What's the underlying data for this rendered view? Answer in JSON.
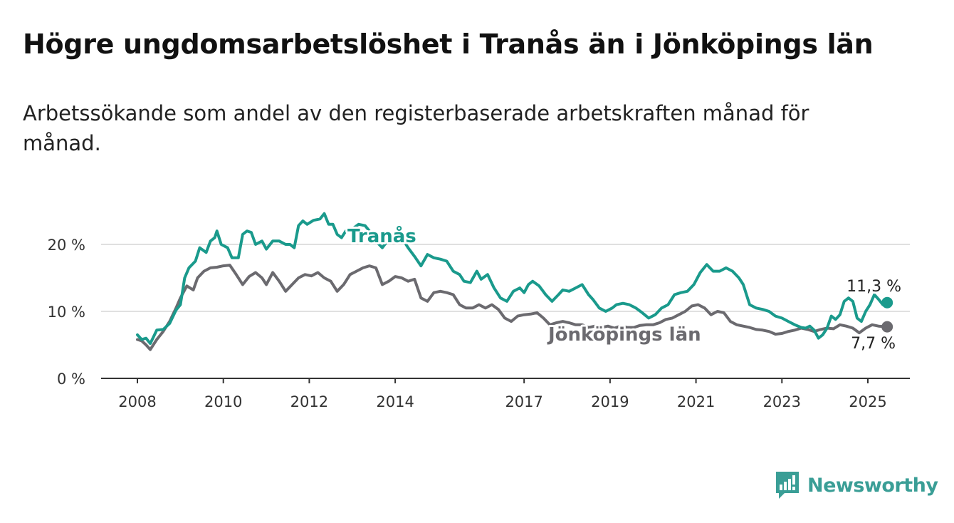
{
  "title": "Högre ungdomsarbetslöshet i Tranås än i Jönköpings län",
  "subtitle": "Arbetssökande som andel av den registerbaserade arbetskraften månad för månad.",
  "brand": {
    "name": "Newsworthy",
    "icon": "newsworthy-logo-icon",
    "color": "#3a9e96"
  },
  "chart_data": {
    "type": "line",
    "title": "Högre ungdomsarbetslöshet i Tranås än i Jönköpings län",
    "xlabel": "",
    "ylabel": "",
    "xlim": [
      2008,
      2025.25
    ],
    "ylim": [
      0,
      20
    ],
    "grid": true,
    "y_ticks": [
      0,
      10,
      20
    ],
    "y_tick_labels": [
      "0 %",
      "10 %",
      "20 %"
    ],
    "x_ticks": [
      2008,
      2010,
      2012,
      2014,
      2017,
      2019,
      2021,
      2023,
      2025
    ],
    "x_tick_labels": [
      "2008",
      "2010",
      "2012",
      "2014",
      "2017",
      "2019",
      "2021",
      "2023",
      "2025"
    ],
    "series": [
      {
        "name": "Tranås",
        "color": "#1a9a8c",
        "end_label": "11,3 %",
        "points": [
          [
            2008,
            6.5
          ],
          [
            2008.1,
            5.8
          ],
          [
            2008.2,
            6.0
          ],
          [
            2008.3,
            5.2
          ],
          [
            2008.45,
            7.2
          ],
          [
            2008.6,
            7.3
          ],
          [
            2008.75,
            8.2
          ],
          [
            2008.9,
            10.2
          ],
          [
            2009.0,
            11.0
          ],
          [
            2009.1,
            15.0
          ],
          [
            2009.2,
            16.5
          ],
          [
            2009.35,
            17.5
          ],
          [
            2009.45,
            19.5
          ],
          [
            2009.6,
            18.8
          ],
          [
            2009.7,
            20.5
          ],
          [
            2009.8,
            21.0
          ],
          [
            2009.85,
            22.0
          ],
          [
            2009.95,
            20.0
          ],
          [
            2010.1,
            19.5
          ],
          [
            2010.2,
            18.0
          ],
          [
            2010.35,
            18.0
          ],
          [
            2010.45,
            21.5
          ],
          [
            2010.55,
            22.0
          ],
          [
            2010.65,
            21.8
          ],
          [
            2010.75,
            20.0
          ],
          [
            2010.9,
            20.5
          ],
          [
            2011.0,
            19.3
          ],
          [
            2011.15,
            20.5
          ],
          [
            2011.3,
            20.5
          ],
          [
            2011.45,
            20.0
          ],
          [
            2011.55,
            20.0
          ],
          [
            2011.65,
            19.5
          ],
          [
            2011.75,
            22.8
          ],
          [
            2011.85,
            23.5
          ],
          [
            2011.95,
            23.0
          ],
          [
            2012.1,
            23.6
          ],
          [
            2012.25,
            23.8
          ],
          [
            2012.35,
            24.6
          ],
          [
            2012.45,
            23.0
          ],
          [
            2012.55,
            23.0
          ],
          [
            2012.65,
            21.5
          ],
          [
            2012.75,
            21.0
          ],
          [
            2012.85,
            22.0
          ],
          [
            2013.0,
            22.3
          ],
          [
            2013.15,
            23.0
          ],
          [
            2013.3,
            22.8
          ],
          [
            2013.4,
            22.0
          ],
          [
            2013.55,
            20.5
          ],
          [
            2013.7,
            19.5
          ],
          [
            2013.85,
            20.8
          ],
          [
            2014.0,
            20.5
          ],
          [
            2014.15,
            21.0
          ],
          [
            2014.3,
            19.5
          ],
          [
            2014.45,
            18.2
          ],
          [
            2014.6,
            16.8
          ],
          [
            2014.75,
            18.5
          ],
          [
            2014.9,
            18.0
          ],
          [
            2015.05,
            17.8
          ],
          [
            2015.2,
            17.5
          ],
          [
            2015.35,
            16.0
          ],
          [
            2015.5,
            15.5
          ],
          [
            2015.6,
            14.5
          ],
          [
            2015.75,
            14.3
          ],
          [
            2015.9,
            16.0
          ],
          [
            2016.0,
            14.8
          ],
          [
            2016.15,
            15.5
          ],
          [
            2016.3,
            13.5
          ],
          [
            2016.45,
            12.0
          ],
          [
            2016.6,
            11.5
          ],
          [
            2016.75,
            13.0
          ],
          [
            2016.9,
            13.5
          ],
          [
            2017.0,
            12.8
          ],
          [
            2017.1,
            14.0
          ],
          [
            2017.2,
            14.5
          ],
          [
            2017.35,
            13.8
          ],
          [
            2017.5,
            12.5
          ],
          [
            2017.65,
            11.5
          ],
          [
            2017.8,
            12.5
          ],
          [
            2017.9,
            13.2
          ],
          [
            2018.05,
            13.0
          ],
          [
            2018.2,
            13.5
          ],
          [
            2018.35,
            14.0
          ],
          [
            2018.5,
            12.5
          ],
          [
            2018.6,
            11.8
          ],
          [
            2018.75,
            10.5
          ],
          [
            2018.9,
            10.0
          ],
          [
            2019.05,
            10.5
          ],
          [
            2019.15,
            11.0
          ],
          [
            2019.3,
            11.2
          ],
          [
            2019.45,
            11.0
          ],
          [
            2019.6,
            10.5
          ],
          [
            2019.75,
            9.8
          ],
          [
            2019.9,
            9.0
          ],
          [
            2020.05,
            9.5
          ],
          [
            2020.2,
            10.5
          ],
          [
            2020.35,
            11.0
          ],
          [
            2020.5,
            12.5
          ],
          [
            2020.65,
            12.8
          ],
          [
            2020.8,
            13.0
          ],
          [
            2020.95,
            14.0
          ],
          [
            2021.1,
            15.8
          ],
          [
            2021.25,
            17.0
          ],
          [
            2021.4,
            16.0
          ],
          [
            2021.55,
            16.0
          ],
          [
            2021.7,
            16.5
          ],
          [
            2021.85,
            16.0
          ],
          [
            2022.0,
            15.0
          ],
          [
            2022.1,
            14.0
          ],
          [
            2022.25,
            11.0
          ],
          [
            2022.4,
            10.5
          ],
          [
            2022.55,
            10.3
          ],
          [
            2022.7,
            10.0
          ],
          [
            2022.85,
            9.3
          ],
          [
            2023.0,
            9.0
          ],
          [
            2023.15,
            8.5
          ],
          [
            2023.3,
            8.0
          ],
          [
            2023.45,
            7.6
          ],
          [
            2023.55,
            7.5
          ],
          [
            2023.65,
            7.8
          ],
          [
            2023.75,
            7.2
          ],
          [
            2023.85,
            6.0
          ],
          [
            2023.95,
            6.5
          ],
          [
            2024.05,
            7.5
          ],
          [
            2024.15,
            9.3
          ],
          [
            2024.25,
            8.8
          ],
          [
            2024.35,
            9.5
          ],
          [
            2024.45,
            11.5
          ],
          [
            2024.55,
            12.0
          ],
          [
            2024.65,
            11.5
          ],
          [
            2024.75,
            9.0
          ],
          [
            2024.85,
            8.5
          ],
          [
            2024.95,
            10.0
          ],
          [
            2025.05,
            11.0
          ],
          [
            2025.15,
            12.5
          ],
          [
            2025.25,
            11.8
          ],
          [
            2025.35,
            11.0
          ],
          [
            2025.45,
            11.3
          ]
        ]
      },
      {
        "name": "Jönköpings län",
        "color": "#6b6a6f",
        "end_label": "7,7 %",
        "points": [
          [
            2008,
            5.8
          ],
          [
            2008.1,
            5.6
          ],
          [
            2008.2,
            5.0
          ],
          [
            2008.3,
            4.3
          ],
          [
            2008.45,
            5.8
          ],
          [
            2008.6,
            7.0
          ],
          [
            2008.75,
            8.5
          ],
          [
            2008.9,
            10.5
          ],
          [
            2009.0,
            12.0
          ],
          [
            2009.15,
            13.8
          ],
          [
            2009.3,
            13.2
          ],
          [
            2009.4,
            15.0
          ],
          [
            2009.55,
            16.0
          ],
          [
            2009.7,
            16.5
          ],
          [
            2009.85,
            16.6
          ],
          [
            2010.0,
            16.8
          ],
          [
            2010.15,
            16.9
          ],
          [
            2010.3,
            15.5
          ],
          [
            2010.45,
            14.0
          ],
          [
            2010.6,
            15.2
          ],
          [
            2010.75,
            15.8
          ],
          [
            2010.9,
            15.0
          ],
          [
            2011.0,
            14.0
          ],
          [
            2011.15,
            15.8
          ],
          [
            2011.3,
            14.5
          ],
          [
            2011.45,
            13.0
          ],
          [
            2011.6,
            14.0
          ],
          [
            2011.75,
            15.0
          ],
          [
            2011.9,
            15.5
          ],
          [
            2012.05,
            15.3
          ],
          [
            2012.2,
            15.8
          ],
          [
            2012.35,
            15.0
          ],
          [
            2012.5,
            14.5
          ],
          [
            2012.65,
            13.0
          ],
          [
            2012.8,
            14.0
          ],
          [
            2012.95,
            15.5
          ],
          [
            2013.1,
            16.0
          ],
          [
            2013.25,
            16.5
          ],
          [
            2013.4,
            16.8
          ],
          [
            2013.55,
            16.5
          ],
          [
            2013.7,
            14.0
          ],
          [
            2013.85,
            14.5
          ],
          [
            2014.0,
            15.2
          ],
          [
            2014.15,
            15.0
          ],
          [
            2014.3,
            14.5
          ],
          [
            2014.45,
            14.8
          ],
          [
            2014.6,
            12.0
          ],
          [
            2014.75,
            11.5
          ],
          [
            2014.9,
            12.8
          ],
          [
            2015.05,
            13.0
          ],
          [
            2015.2,
            12.8
          ],
          [
            2015.35,
            12.5
          ],
          [
            2015.5,
            11.0
          ],
          [
            2015.65,
            10.5
          ],
          [
            2015.8,
            10.5
          ],
          [
            2015.95,
            11.0
          ],
          [
            2016.1,
            10.5
          ],
          [
            2016.25,
            11.0
          ],
          [
            2016.4,
            10.3
          ],
          [
            2016.55,
            9.0
          ],
          [
            2016.7,
            8.5
          ],
          [
            2016.85,
            9.3
          ],
          [
            2017.0,
            9.5
          ],
          [
            2017.15,
            9.6
          ],
          [
            2017.3,
            9.8
          ],
          [
            2017.45,
            9.0
          ],
          [
            2017.6,
            8.0
          ],
          [
            2017.75,
            8.3
          ],
          [
            2017.9,
            8.5
          ],
          [
            2018.05,
            8.3
          ],
          [
            2018.2,
            8.0
          ],
          [
            2018.35,
            8.0
          ],
          [
            2018.5,
            7.6
          ],
          [
            2018.65,
            7.8
          ],
          [
            2018.8,
            7.6
          ],
          [
            2018.95,
            7.8
          ],
          [
            2019.1,
            7.5
          ],
          [
            2019.25,
            7.8
          ],
          [
            2019.4,
            7.6
          ],
          [
            2019.55,
            7.6
          ],
          [
            2019.7,
            7.9
          ],
          [
            2019.85,
            8.0
          ],
          [
            2020.0,
            8.0
          ],
          [
            2020.15,
            8.3
          ],
          [
            2020.3,
            8.8
          ],
          [
            2020.45,
            9.0
          ],
          [
            2020.6,
            9.5
          ],
          [
            2020.75,
            10.0
          ],
          [
            2020.9,
            10.8
          ],
          [
            2021.05,
            11.0
          ],
          [
            2021.2,
            10.5
          ],
          [
            2021.35,
            9.5
          ],
          [
            2021.5,
            10.0
          ],
          [
            2021.65,
            9.8
          ],
          [
            2021.8,
            8.5
          ],
          [
            2021.95,
            8.0
          ],
          [
            2022.1,
            7.8
          ],
          [
            2022.25,
            7.6
          ],
          [
            2022.4,
            7.3
          ],
          [
            2022.55,
            7.2
          ],
          [
            2022.7,
            7.0
          ],
          [
            2022.85,
            6.6
          ],
          [
            2023.0,
            6.7
          ],
          [
            2023.15,
            7.0
          ],
          [
            2023.3,
            7.2
          ],
          [
            2023.45,
            7.5
          ],
          [
            2023.6,
            7.3
          ],
          [
            2023.75,
            7.0
          ],
          [
            2023.9,
            7.3
          ],
          [
            2024.05,
            7.5
          ],
          [
            2024.2,
            7.4
          ],
          [
            2024.35,
            8.0
          ],
          [
            2024.5,
            7.8
          ],
          [
            2024.65,
            7.5
          ],
          [
            2024.8,
            6.8
          ],
          [
            2024.95,
            7.5
          ],
          [
            2025.1,
            8.0
          ],
          [
            2025.25,
            7.8
          ],
          [
            2025.45,
            7.7
          ]
        ]
      }
    ],
    "annotations": [
      {
        "text": "Tranås",
        "series": "Tranås"
      },
      {
        "text": "Jönköpings län",
        "series": "Jönköpings län"
      }
    ]
  }
}
